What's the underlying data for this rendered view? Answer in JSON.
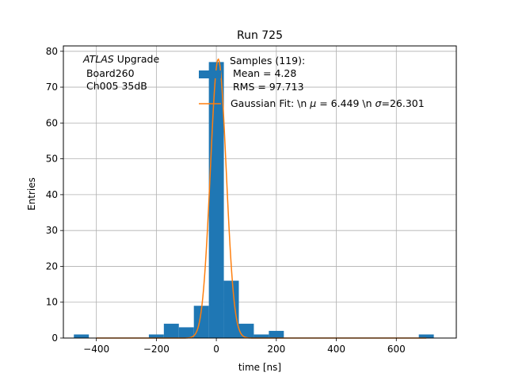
{
  "chart_data": {
    "type": "bar",
    "title": "Run 725",
    "xlabel": "time [ns]",
    "ylabel": "Entries",
    "xlim": [
      -510,
      800
    ],
    "ylim": [
      0,
      81.5
    ],
    "grid": true,
    "xticks": [
      -400,
      -200,
      0,
      200,
      400,
      600
    ],
    "yticks": [
      0,
      10,
      20,
      30,
      40,
      50,
      60,
      70,
      80
    ],
    "annotation": {
      "italic": "ATLAS",
      "line1": " Upgrade",
      "line2": " Board260",
      "line3": " Ch005 35dB"
    },
    "legend": {
      "position": "top-right",
      "hist_label_lines": [
        "Samples (119):",
        " Mean = 4.28",
        " RMS = 97.713"
      ],
      "fit_label_pre": "Gaussian Fit: \\n ",
      "fit_mu_sym": "μ",
      "fit_mid": " = 6.449 \\n ",
      "fit_sigma_sym": "σ",
      "fit_post": "=26.301"
    },
    "histogram": {
      "color": "#1f77b4",
      "bins": [
        {
          "x0": -475,
          "x1": -425,
          "count": 1
        },
        {
          "x0": -225,
          "x1": -175,
          "count": 1
        },
        {
          "x0": -175,
          "x1": -125,
          "count": 4
        },
        {
          "x0": -125,
          "x1": -75,
          "count": 3
        },
        {
          "x0": -75,
          "x1": -25,
          "count": 9
        },
        {
          "x0": -25,
          "x1": 25,
          "count": 77
        },
        {
          "x0": 25,
          "x1": 75,
          "count": 16
        },
        {
          "x0": 75,
          "x1": 125,
          "count": 4
        },
        {
          "x0": 125,
          "x1": 175,
          "count": 1
        },
        {
          "x0": 175,
          "x1": 225,
          "count": 2
        },
        {
          "x0": 675,
          "x1": 725,
          "count": 1
        }
      ]
    },
    "fit": {
      "color": "#ff7f0e",
      "amplitude": 77.8,
      "mu": 6.449,
      "sigma": 26.301,
      "x_range": [
        -400,
        700
      ]
    }
  }
}
